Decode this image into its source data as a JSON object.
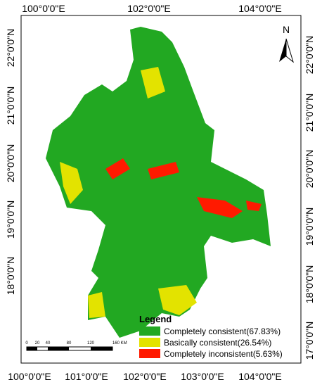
{
  "north": "N",
  "top_labels": [
    "100°0'0\"E",
    "102°0'0\"E",
    "104°0'0\"E"
  ],
  "bottom_labels": [
    "100°0'0\"E",
    "101°0'0\"E",
    "102°0'0\"E",
    "103°0'0\"E",
    "104°0'0\"E"
  ],
  "left_labels": [
    "22°0'0\"N",
    "21°0'0\"N",
    "20°0'0\"N",
    "19°0'0\"N",
    "18°0'0\"N"
  ],
  "right_labels": [
    "22°0'0\"N",
    "21°0'0\"N",
    "20°0'0\"N",
    "19°0'0\"N",
    "18°0'0\"N",
    "17°0'0\"N"
  ],
  "scale": {
    "labels": [
      "0",
      "20",
      "40",
      "80",
      "120",
      "160 KM"
    ]
  },
  "legend": {
    "title": "Legend",
    "items": [
      {
        "label": "Completely consistent(67.83%)",
        "color": "#22a822"
      },
      {
        "label": "Basically consistent(26.54%)",
        "color": "#e3e300"
      },
      {
        "label": "Completely inconsistent(5.63%)",
        "color": "#ff1a00"
      }
    ]
  }
}
